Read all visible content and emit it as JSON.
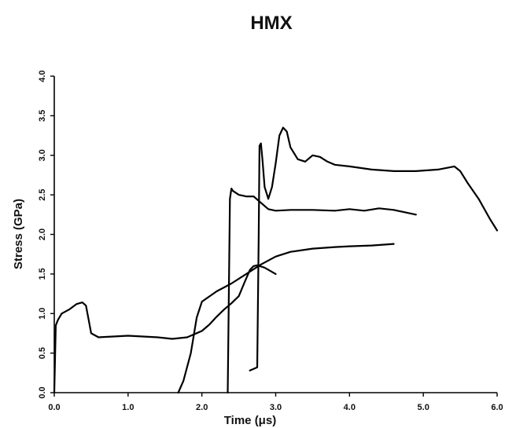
{
  "chart_data": {
    "type": "line",
    "title": "HMX",
    "xlabel": "Time (μs)",
    "ylabel": "Stress (GPa)",
    "xlim": [
      0,
      6.0
    ],
    "ylim": [
      0,
      4.0
    ],
    "x_ticks": [
      "0.0",
      "1.0",
      "2.0",
      "3.0",
      "4.0",
      "5.0",
      "6.0"
    ],
    "y_ticks": [
      "0.0",
      "0.5",
      "1.0",
      "1.5",
      "2.0",
      "2.5",
      "3.0",
      "3.5",
      "4.0"
    ],
    "grid": false,
    "legend": "none",
    "series": [
      {
        "x": [
          0.0,
          0.02,
          0.05,
          0.1,
          0.2,
          0.3,
          0.38,
          0.43,
          0.47,
          0.5,
          0.6,
          0.8,
          1.0,
          1.2,
          1.4,
          1.6,
          1.8,
          2.0,
          2.1,
          2.2,
          2.3,
          2.4,
          2.5,
          2.58,
          2.65,
          2.7,
          2.75,
          2.85,
          3.0
        ],
        "y": [
          0.0,
          0.85,
          0.92,
          1.0,
          1.05,
          1.12,
          1.14,
          1.1,
          0.9,
          0.75,
          0.7,
          0.71,
          0.72,
          0.71,
          0.7,
          0.68,
          0.7,
          0.78,
          0.86,
          0.96,
          1.05,
          1.13,
          1.22,
          1.4,
          1.55,
          1.6,
          1.61,
          1.58,
          1.5
        ]
      },
      {
        "x": [
          1.68,
          1.75,
          1.85,
          1.93,
          2.0,
          2.2,
          2.4,
          2.6,
          2.8,
          3.0,
          3.2,
          3.5,
          3.8,
          4.0,
          4.3,
          4.6
        ],
        "y": [
          0.0,
          0.15,
          0.5,
          0.95,
          1.15,
          1.28,
          1.38,
          1.5,
          1.62,
          1.72,
          1.78,
          1.82,
          1.84,
          1.85,
          1.86,
          1.88
        ]
      },
      {
        "x": [
          2.35,
          2.38,
          2.4,
          2.42,
          2.5,
          2.6,
          2.7,
          2.8,
          2.9,
          3.0,
          3.2,
          3.5,
          3.8,
          4.0,
          4.2,
          4.4,
          4.6,
          4.9
        ],
        "y": [
          0.0,
          2.45,
          2.58,
          2.55,
          2.5,
          2.48,
          2.48,
          2.4,
          2.32,
          2.3,
          2.31,
          2.31,
          2.3,
          2.32,
          2.3,
          2.33,
          2.31,
          2.25
        ]
      },
      {
        "x": [
          2.65,
          2.7,
          2.75,
          2.77,
          2.78,
          2.8,
          2.82,
          2.85,
          2.9,
          2.95,
          3.0,
          3.05,
          3.1,
          3.15,
          3.2,
          3.3,
          3.4,
          3.5,
          3.6,
          3.7,
          3.8,
          4.0,
          4.3,
          4.6,
          4.9,
          5.2,
          5.42,
          5.5,
          5.6,
          5.75,
          5.9,
          6.0
        ],
        "y": [
          0.28,
          0.3,
          0.32,
          2.0,
          3.12,
          3.15,
          2.95,
          2.6,
          2.45,
          2.6,
          2.9,
          3.25,
          3.35,
          3.3,
          3.1,
          2.95,
          2.92,
          3.0,
          2.98,
          2.92,
          2.88,
          2.86,
          2.82,
          2.8,
          2.8,
          2.82,
          2.86,
          2.8,
          2.65,
          2.45,
          2.2,
          2.05
        ]
      }
    ]
  }
}
